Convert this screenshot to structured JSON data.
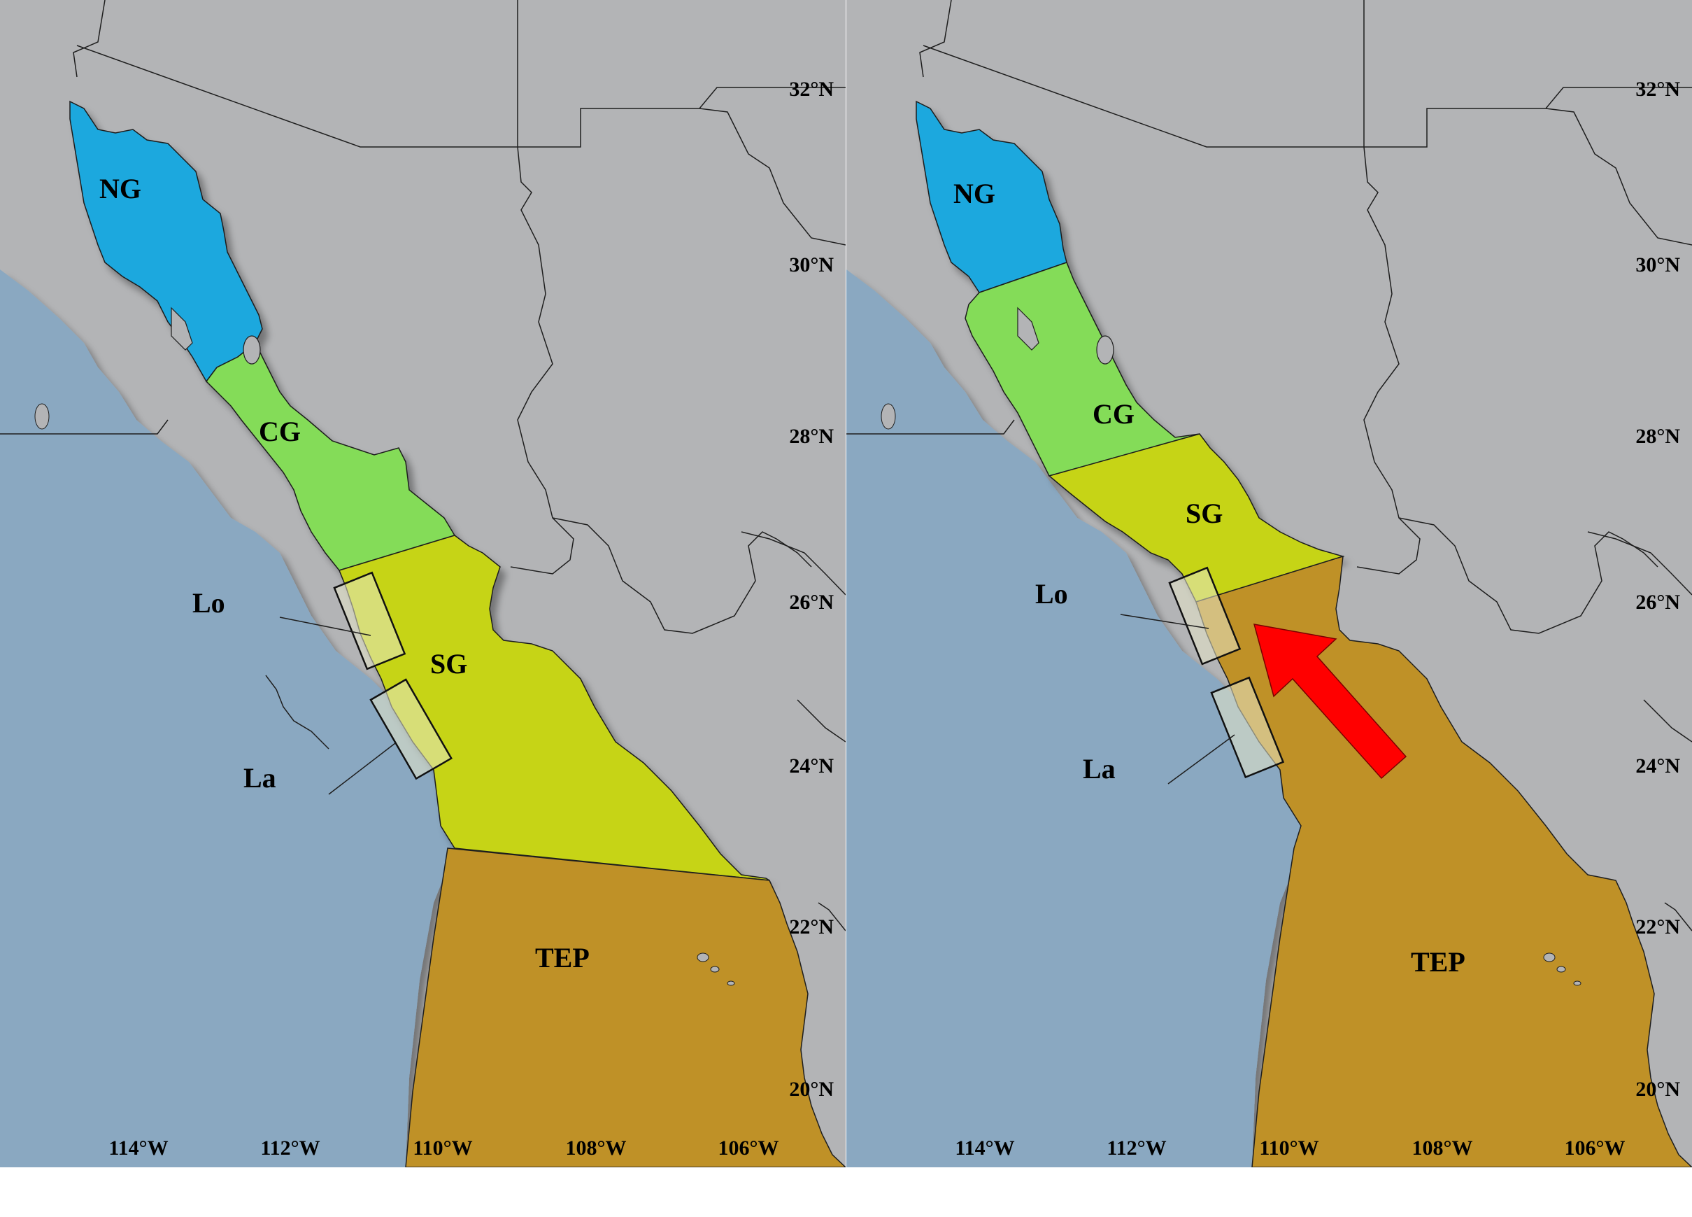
{
  "colors": {
    "ocean": "#8aa8c1",
    "land": "#b3b4b6",
    "NG": "#1da8de",
    "CG": "#84dc58",
    "SG": "#c6d419",
    "TEP": "#bf9127",
    "arrow": "#ff0000",
    "border": "#1e1e1e"
  },
  "latitude_labels": [
    "32°N",
    "30°N",
    "28°N",
    "26°N",
    "24°N",
    "22°N",
    "20°N"
  ],
  "longitude_labels": [
    "114°W",
    "112°W",
    "110°W",
    "108°W",
    "106°W"
  ],
  "panels": [
    {
      "id": "left",
      "region_labels": {
        "NG": "NG",
        "CG": "CG",
        "SG": "SG",
        "TEP": "TEP"
      },
      "site_labels": {
        "Lo": "Lo",
        "La": "La"
      },
      "arrow": false
    },
    {
      "id": "right",
      "region_labels": {
        "NG": "NG",
        "CG": "CG",
        "SG": "SG",
        "TEP": "TEP"
      },
      "site_labels": {
        "Lo": "Lo",
        "La": "La"
      },
      "arrow": true,
      "arrow_icon": "northwest-arrow-icon"
    }
  ]
}
